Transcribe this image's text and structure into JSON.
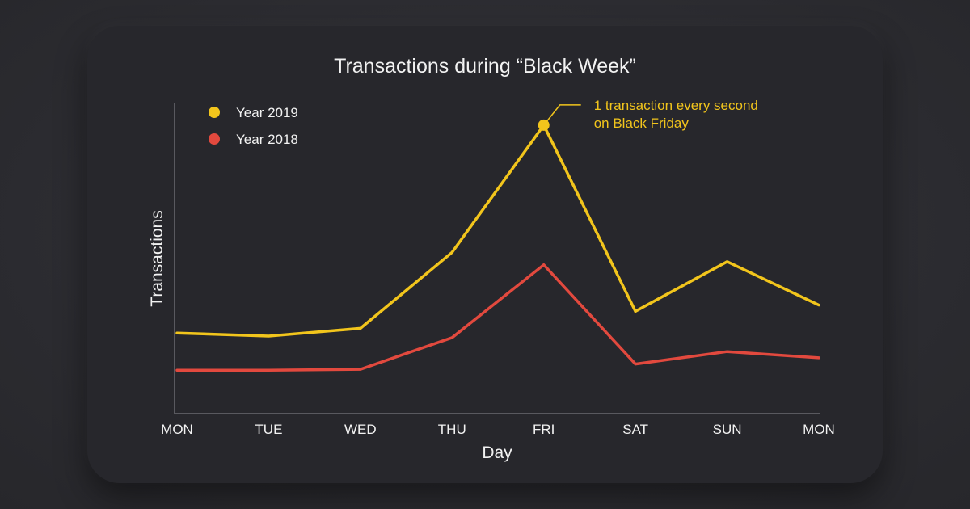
{
  "chart_data": {
    "type": "line",
    "title": "Transactions during “Black Week”",
    "xlabel": "Day",
    "ylabel": "Transactions",
    "categories": [
      "MON",
      "TUE",
      "WED",
      "THU",
      "FRI",
      "SAT",
      "SUN",
      "MON"
    ],
    "ylim": [
      0,
      100
    ],
    "grid": false,
    "legend_position": "top-left",
    "series": [
      {
        "name": "Year 2019",
        "color": "#f2c51c",
        "values": [
          26,
          25,
          27.5,
          52,
          93,
          33,
          49,
          35
        ]
      },
      {
        "name": "Year 2018",
        "color": "#e2493e",
        "values": [
          14,
          14,
          14.3,
          24.5,
          48,
          16,
          20,
          18
        ]
      }
    ],
    "annotation": {
      "series_index": 0,
      "point_index": 4,
      "lines": [
        "1 transaction every second",
        "on Black Friday"
      ],
      "color": "#f2c51c"
    }
  },
  "colors": {
    "background": "#2c2c31",
    "card": "#27272c",
    "axis": "#6a6a70",
    "text": "#f2f2f2"
  }
}
